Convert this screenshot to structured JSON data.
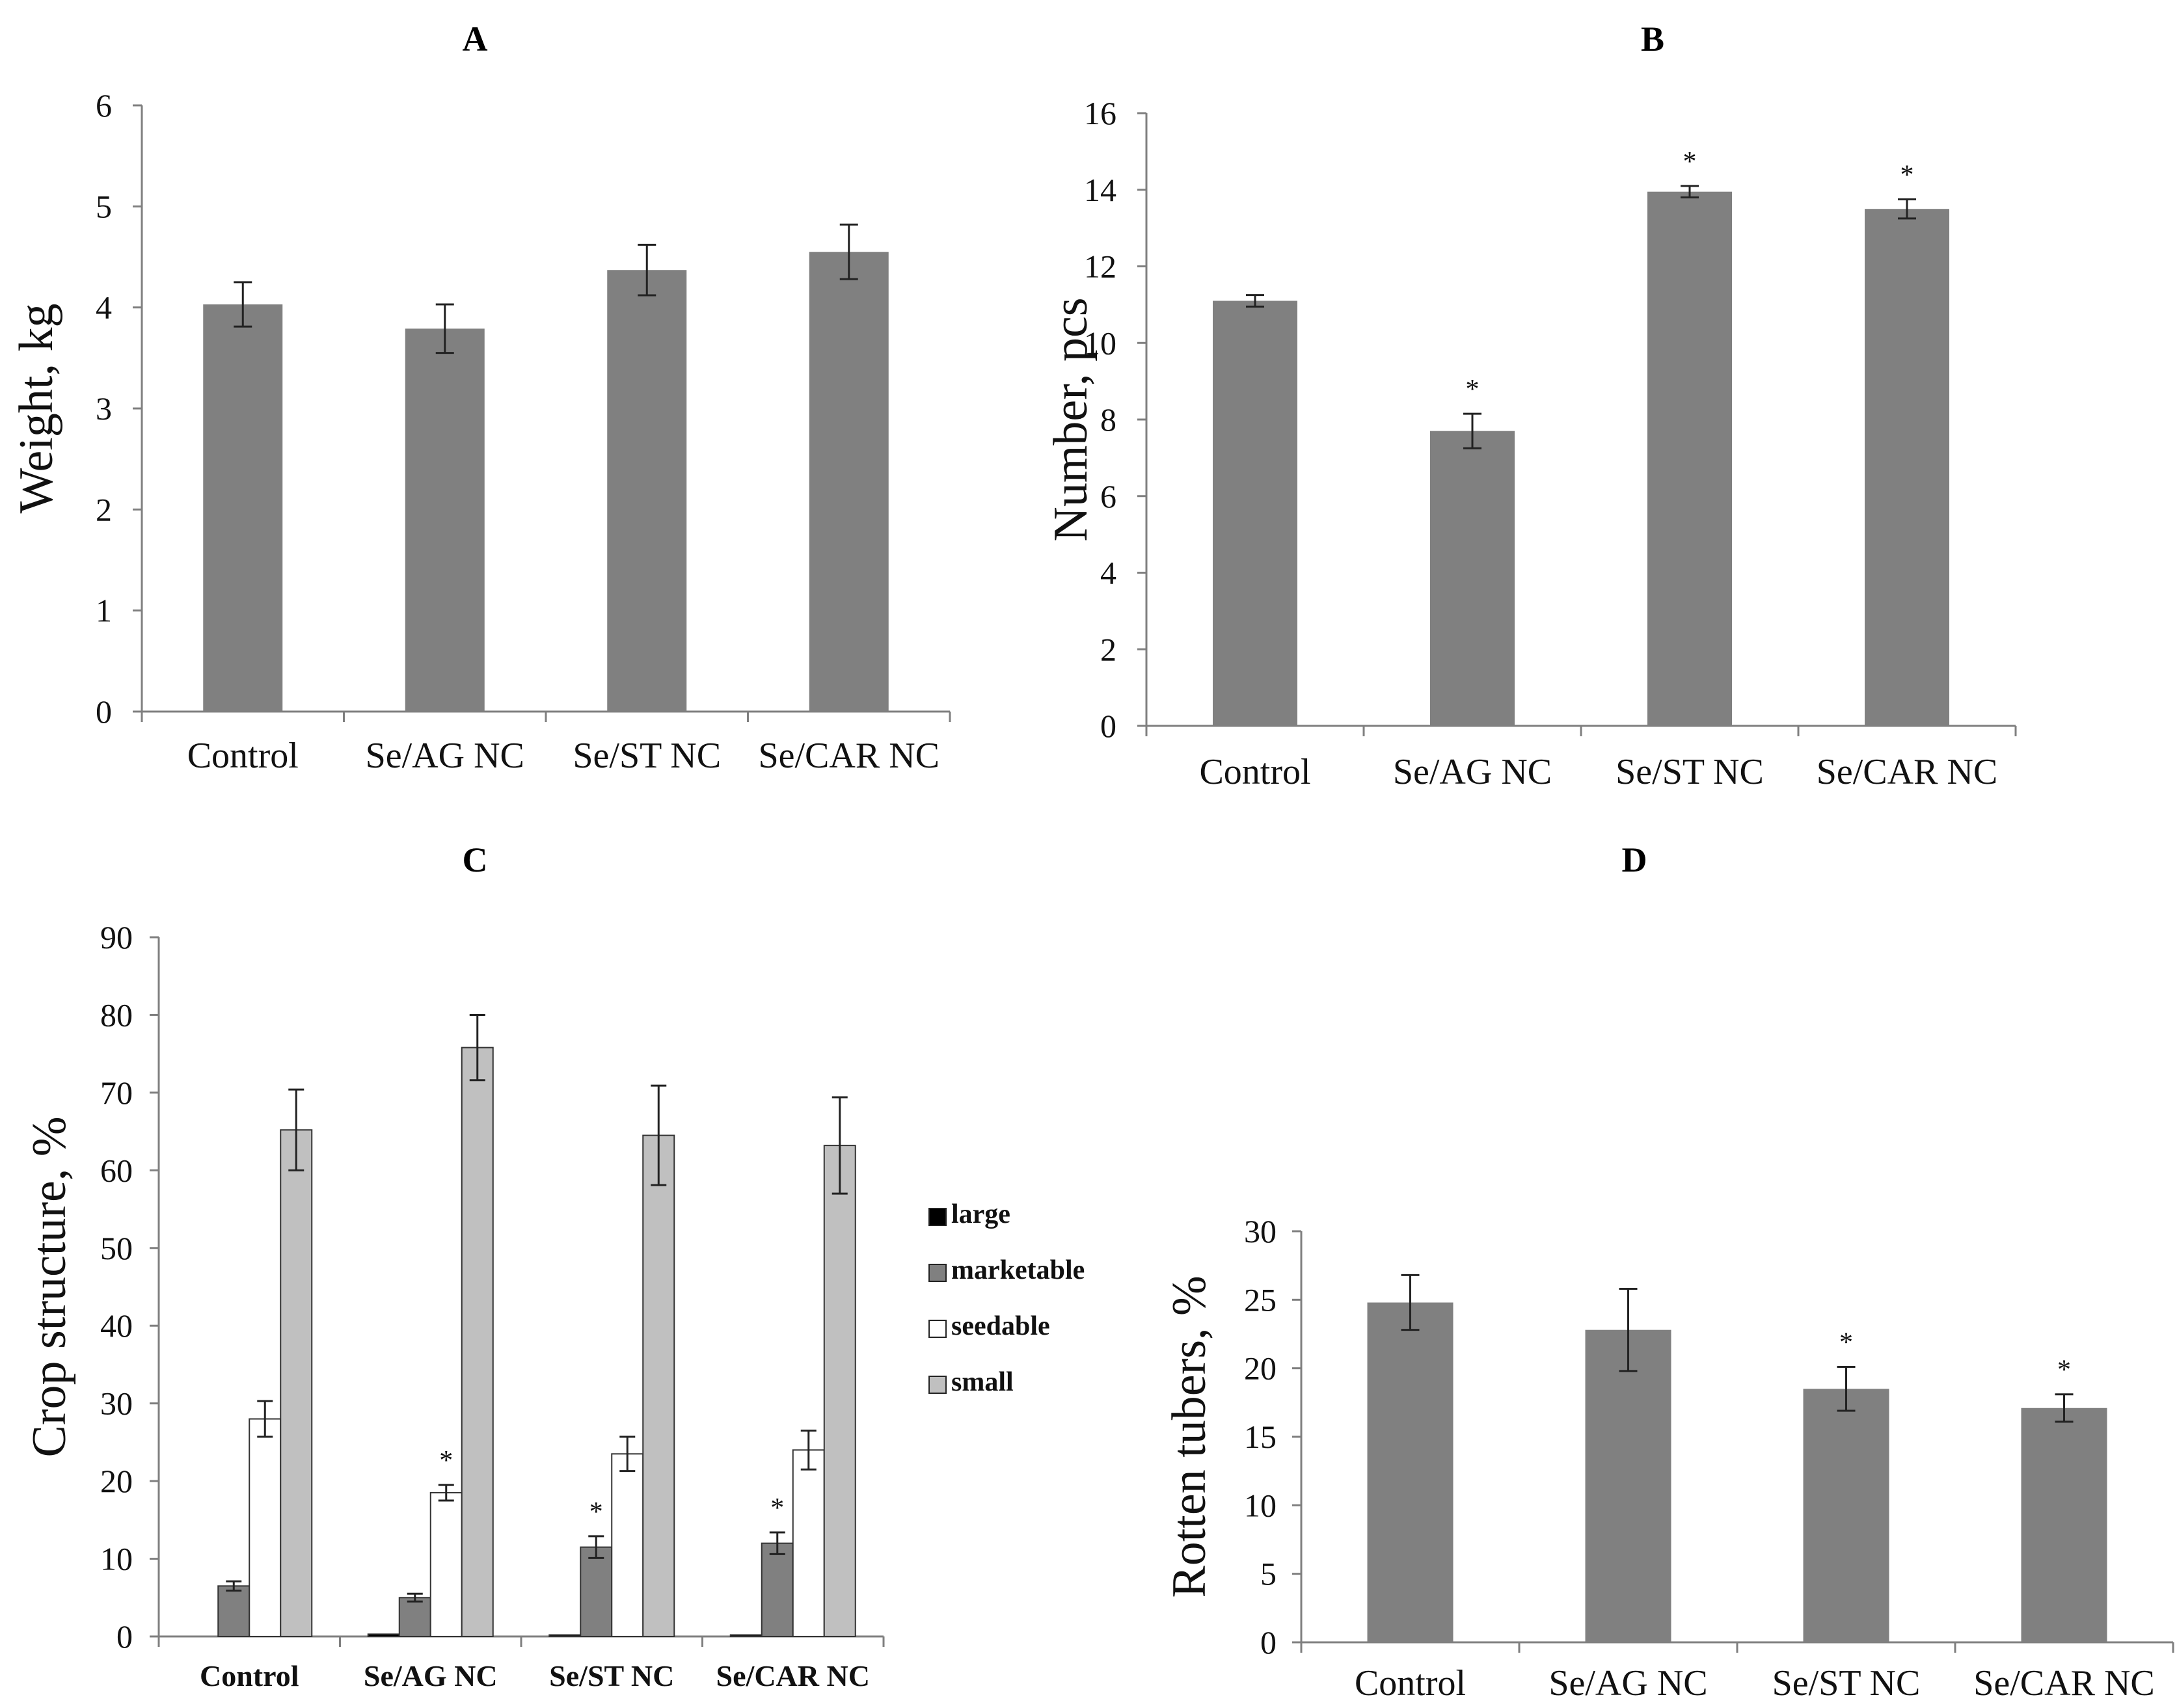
{
  "chart_data": [
    {
      "id": "A",
      "type": "bar",
      "title": "A",
      "xlabel": "",
      "ylabel": "Weight, kg",
      "ylim": [
        0,
        6
      ],
      "yticks": [
        0,
        1,
        2,
        3,
        4,
        5,
        6
      ],
      "categories": [
        "Control",
        "Se/AG NC",
        "Se/ST NC",
        "Se/CAR NC"
      ],
      "series": [
        {
          "name": "Weight",
          "color": "#808080",
          "values": [
            4.03,
            3.79,
            4.37,
            4.55
          ],
          "errors": [
            0.22,
            0.24,
            0.25,
            0.27
          ],
          "significant": [
            false,
            false,
            false,
            false
          ]
        }
      ]
    },
    {
      "id": "B",
      "type": "bar",
      "title": "B",
      "xlabel": "",
      "ylabel": "Number, pcs",
      "ylim": [
        0,
        16
      ],
      "yticks": [
        0,
        2,
        4,
        6,
        8,
        10,
        12,
        14,
        16
      ],
      "categories": [
        "Control",
        "Se/AG NC",
        "Se/ST NC",
        "Se/CAR NC"
      ],
      "series": [
        {
          "name": "Number",
          "color": "#808080",
          "values": [
            11.1,
            7.7,
            13.95,
            13.5
          ],
          "errors": [
            0.15,
            0.45,
            0.15,
            0.25
          ],
          "significant": [
            false,
            true,
            true,
            true
          ]
        }
      ]
    },
    {
      "id": "C",
      "type": "bar",
      "title": "C",
      "xlabel": "",
      "ylabel": "Crop structure, %",
      "ylim": [
        0,
        90
      ],
      "yticks": [
        0,
        10,
        20,
        30,
        40,
        50,
        60,
        70,
        80,
        90
      ],
      "categories": [
        "Control",
        "Se/AG NC",
        "Se/ST NC",
        "Se/CAR NC"
      ],
      "legend_position": "right",
      "series": [
        {
          "name": "large",
          "color": "#000000",
          "values": [
            0,
            0.3,
            0.2,
            0.2
          ],
          "errors": [
            0,
            0,
            0,
            0
          ],
          "significant": [
            false,
            false,
            false,
            false
          ]
        },
        {
          "name": "marketable",
          "color": "#808080",
          "values": [
            6.5,
            5.0,
            11.5,
            12.0
          ],
          "errors": [
            0.6,
            0.5,
            1.4,
            1.4
          ],
          "significant": [
            false,
            false,
            true,
            true
          ]
        },
        {
          "name": "seedable",
          "color": "#ffffff",
          "values": [
            28.0,
            18.5,
            23.5,
            24.0
          ],
          "errors": [
            2.3,
            1.0,
            2.2,
            2.5
          ],
          "significant": [
            false,
            true,
            false,
            false
          ]
        },
        {
          "name": "small",
          "color": "#c0c0c0",
          "values": [
            65.2,
            75.8,
            64.5,
            63.2
          ],
          "errors": [
            5.2,
            4.2,
            6.4,
            6.2
          ],
          "significant": [
            false,
            false,
            false,
            false
          ]
        }
      ]
    },
    {
      "id": "D",
      "type": "bar",
      "title": "D",
      "xlabel": "",
      "ylabel": "Rotten tubers, %",
      "ylim": [
        0,
        30
      ],
      "yticks": [
        0,
        5,
        10,
        15,
        20,
        25,
        30
      ],
      "categories": [
        "Control",
        "Se/AG NC",
        "Se/ST NC",
        "Se/CAR NC"
      ],
      "series": [
        {
          "name": "Rotten",
          "color": "#808080",
          "values": [
            24.8,
            22.8,
            18.5,
            17.1
          ],
          "errors": [
            2.0,
            3.0,
            1.6,
            1.0
          ],
          "significant": [
            false,
            false,
            true,
            true
          ]
        }
      ]
    }
  ],
  "significance_marker": "*"
}
